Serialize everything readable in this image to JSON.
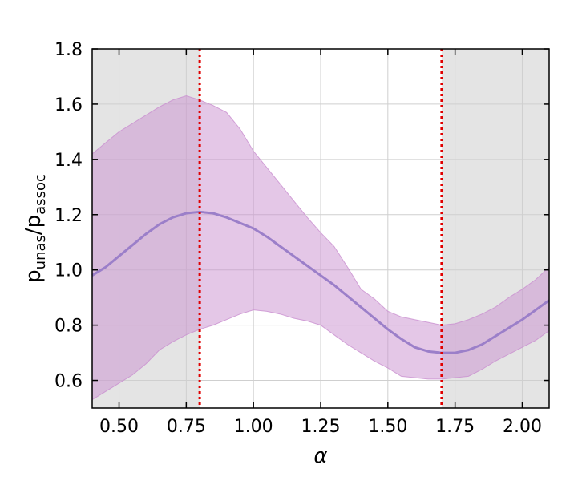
{
  "chart_data": {
    "type": "line",
    "xlabel": "α",
    "ylabel": {
      "base1": "p",
      "sub1": "unas",
      "slash": "/",
      "base2": "p",
      "sub2": "assoc"
    },
    "xlim": [
      0.4,
      2.1
    ],
    "ylim": [
      0.5,
      1.8
    ],
    "xticks": [
      0.5,
      0.75,
      1.0,
      1.25,
      1.5,
      1.75,
      2.0
    ],
    "xtick_labels": [
      "0.50",
      "0.75",
      "1.00",
      "1.25",
      "1.50",
      "1.75",
      "2.00"
    ],
    "yticks": [
      0.6,
      0.8,
      1.0,
      1.2,
      1.4,
      1.6,
      1.8
    ],
    "ytick_labels": [
      "0.6",
      "0.8",
      "1.0",
      "1.2",
      "1.4",
      "1.6",
      "1.8"
    ],
    "grid": true,
    "shaded_regions": [
      {
        "x0": 0.4,
        "x1": 0.8,
        "color": "#e4e4e4"
      },
      {
        "x0": 1.7,
        "x1": 2.1,
        "color": "#e4e4e4"
      }
    ],
    "vlines": [
      {
        "x": 0.8,
        "color": "#e00000",
        "style": "dotted"
      },
      {
        "x": 1.7,
        "color": "#e00000",
        "style": "dotted"
      }
    ],
    "series": [
      {
        "line_color": "#9b7fc9",
        "band_color": "#c98fcf",
        "x": [
          0.4,
          0.45,
          0.5,
          0.55,
          0.6,
          0.65,
          0.7,
          0.75,
          0.8,
          0.85,
          0.9,
          0.95,
          1.0,
          1.05,
          1.1,
          1.15,
          1.2,
          1.25,
          1.3,
          1.35,
          1.4,
          1.45,
          1.5,
          1.55,
          1.6,
          1.65,
          1.7,
          1.75,
          1.8,
          1.85,
          1.9,
          1.95,
          2.0,
          2.05,
          2.1
        ],
        "y": [
          0.98,
          1.01,
          1.05,
          1.09,
          1.13,
          1.165,
          1.19,
          1.205,
          1.21,
          1.205,
          1.19,
          1.17,
          1.15,
          1.12,
          1.085,
          1.05,
          1.015,
          0.98,
          0.945,
          0.905,
          0.865,
          0.825,
          0.785,
          0.75,
          0.72,
          0.705,
          0.7,
          0.7,
          0.71,
          0.73,
          0.76,
          0.79,
          0.82,
          0.855,
          0.89
        ],
        "lower": [
          0.53,
          0.56,
          0.59,
          0.62,
          0.66,
          0.71,
          0.74,
          0.765,
          0.785,
          0.8,
          0.82,
          0.84,
          0.855,
          0.85,
          0.84,
          0.825,
          0.815,
          0.8,
          0.765,
          0.73,
          0.7,
          0.67,
          0.645,
          0.615,
          0.61,
          0.605,
          0.605,
          0.61,
          0.615,
          0.64,
          0.67,
          0.695,
          0.72,
          0.745,
          0.78
        ],
        "upper": [
          1.42,
          1.46,
          1.5,
          1.53,
          1.56,
          1.59,
          1.615,
          1.63,
          1.615,
          1.595,
          1.57,
          1.51,
          1.43,
          1.37,
          1.31,
          1.25,
          1.19,
          1.135,
          1.085,
          1.01,
          0.93,
          0.895,
          0.85,
          0.83,
          0.82,
          0.81,
          0.8,
          0.805,
          0.82,
          0.84,
          0.865,
          0.9,
          0.93,
          0.965,
          1.01
        ]
      }
    ]
  }
}
